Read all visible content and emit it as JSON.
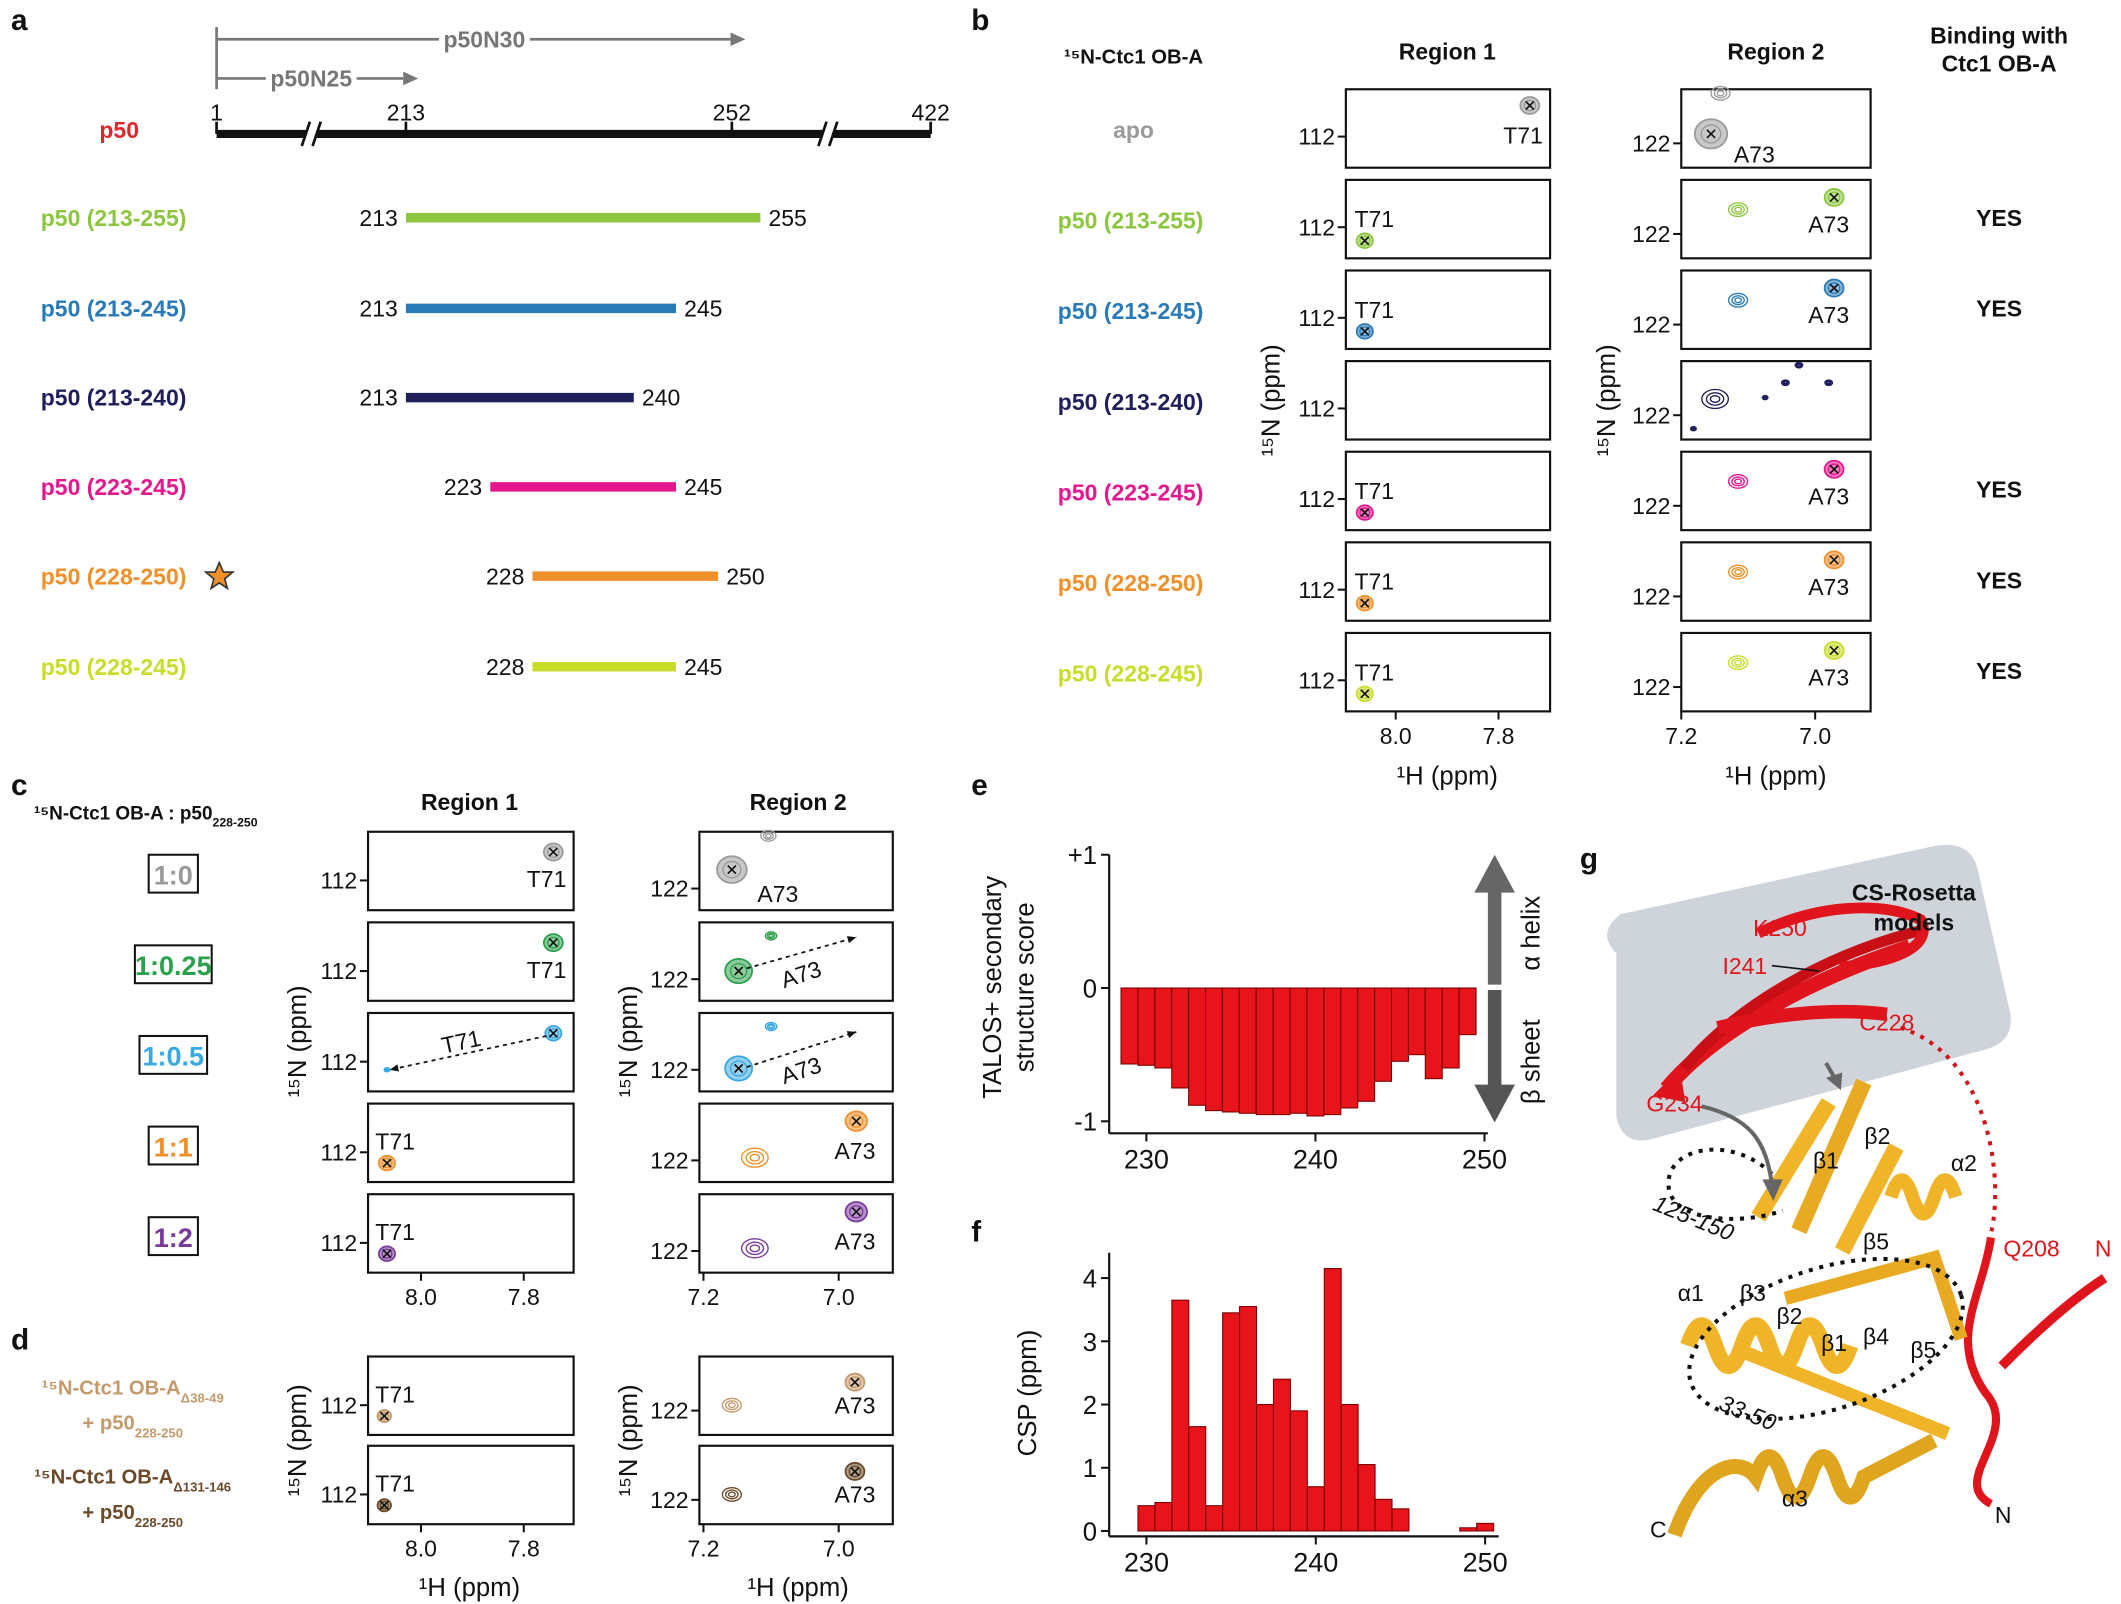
{
  "panel_labels": [
    "a",
    "b",
    "c",
    "d",
    "e",
    "f",
    "g"
  ],
  "a": {
    "fragments": [
      "p50N30",
      "p50N25"
    ],
    "protein": {
      "name": "p50",
      "color": "#e0262c",
      "residues": [
        1,
        213,
        252,
        422
      ]
    },
    "constructs": [
      {
        "name": "p50 (213-255)",
        "color": "#8cc63e",
        "start": 213,
        "end": 255
      },
      {
        "name": "p50 (213-245)",
        "color": "#2a7ab8",
        "start": 213,
        "end": 245
      },
      {
        "name": "p50 (213-240)",
        "color": "#1f1f5c",
        "start": 213,
        "end": 240
      },
      {
        "name": "p50 (223-245)",
        "color": "#e6168c",
        "start": 223,
        "end": 245
      },
      {
        "name": "p50 (228-250)",
        "color": "#f0902a",
        "start": 228,
        "end": 250
      },
      {
        "name": "p50 (228-245)",
        "color": "#c8dc2a",
        "start": 228,
        "end": 245
      }
    ]
  },
  "axes": {
    "xlabel": "¹H (ppm)",
    "ylabel": "¹⁵N (ppm)",
    "region1_xticks": [
      {
        "value": 8.0,
        "label": "8.0"
      },
      7.8
    ],
    "region2_xticks": [
      7.2,
      {
        "value": 7.0,
        "label": "7.0"
      }
    ],
    "region1_ytick": 112,
    "region2_ytick": 122,
    "peaks": [
      "T71",
      "A73"
    ]
  },
  "b": {
    "header": "¹⁵N-Ctc1 OB-A",
    "regions": [
      "Region 1",
      "Region 2"
    ],
    "binding_header": [
      "Binding with",
      "Ctc1 OB-A"
    ],
    "apo": "apo",
    "apo_color": "#9a9a9a",
    "binding": [
      "YES",
      "YES",
      null,
      "YES",
      "YES",
      "YES"
    ]
  },
  "c": {
    "title": {
      "text": "¹⁵N-Ctc1 OB-A : p50",
      "sub": "228-250"
    },
    "ratios": [
      {
        "label": "1:0",
        "color": "#9a9a9a"
      },
      {
        "label": "1:0.25",
        "color": "#2ca04c"
      },
      {
        "label": "1:0.5",
        "color": "#3aa8e0"
      },
      {
        "label": "1:1",
        "color": "#f0902a"
      },
      {
        "label": "1:2",
        "color": "#7a3a9a"
      }
    ]
  },
  "d": {
    "variants": [
      {
        "name": "¹⁵N-Ctc1 OB-A",
        "sub": "Δ38-49",
        "color": "#c49a6c"
      },
      {
        "name": "¹⁵N-Ctc1 OB-A",
        "sub": "Δ131-146",
        "color": "#6b4a2a"
      }
    ],
    "ligand": {
      "text": "+ p50",
      "sub": "228-250"
    }
  },
  "e": {
    "type": "bar",
    "ylabel": [
      "TALOS+ secondary",
      "structure score"
    ],
    "x": [
      229,
      230,
      231,
      232,
      233,
      234,
      235,
      236,
      237,
      238,
      239,
      240,
      241,
      242,
      243,
      244,
      245,
      246,
      247,
      248,
      249
    ],
    "values": [
      -0.57,
      -0.58,
      -0.6,
      -0.75,
      -0.88,
      -0.92,
      -0.93,
      -0.94,
      -0.95,
      -0.95,
      -0.94,
      -0.96,
      -0.95,
      -0.9,
      -0.85,
      -0.7,
      -0.55,
      -0.5,
      -0.68,
      -0.6,
      -0.35
    ],
    "color": "#e8141c",
    "xlim": [
      227.8,
      250.2
    ],
    "xticks": [
      230,
      240,
      250
    ],
    "ylim": [
      -1.05,
      1
    ],
    "yticks": [
      {
        "value": 1,
        "label": "+1"
      },
      0,
      -1
    ],
    "annotations": [
      "α helix",
      "β sheet"
    ]
  },
  "f": {
    "type": "bar",
    "ylabel": "CSP (ppm)",
    "x": [
      230,
      231,
      232,
      233,
      234,
      235,
      236,
      237,
      238,
      239,
      240,
      241,
      242,
      243,
      244,
      245,
      246,
      247,
      248,
      249,
      250
    ],
    "values": [
      0.4,
      0.45,
      3.65,
      1.65,
      0.4,
      3.45,
      3.55,
      2.0,
      2.4,
      1.9,
      0.7,
      4.15,
      2.0,
      1.05,
      0.5,
      0.35,
      0,
      0,
      0,
      0.05,
      0.12
    ],
    "color": "#e8141c",
    "xlim": [
      227.8,
      250.8
    ],
    "xticks": [
      230,
      240,
      250
    ],
    "ylim": [
      0,
      4.4
    ],
    "yticks": [
      0,
      1,
      2,
      3,
      4
    ]
  },
  "g": {
    "title": [
      "CS-Rosetta",
      "models"
    ],
    "labels": [
      "β2",
      "β1",
      "α2",
      "125-150",
      "β5",
      "α1",
      "β3",
      "β2",
      "β1",
      "β4",
      "β5",
      "33-50",
      "C",
      "α3",
      "N"
    ],
    "red_labels": [
      "K250",
      "I241",
      "C228",
      "G234",
      "Q208",
      "N"
    ]
  }
}
